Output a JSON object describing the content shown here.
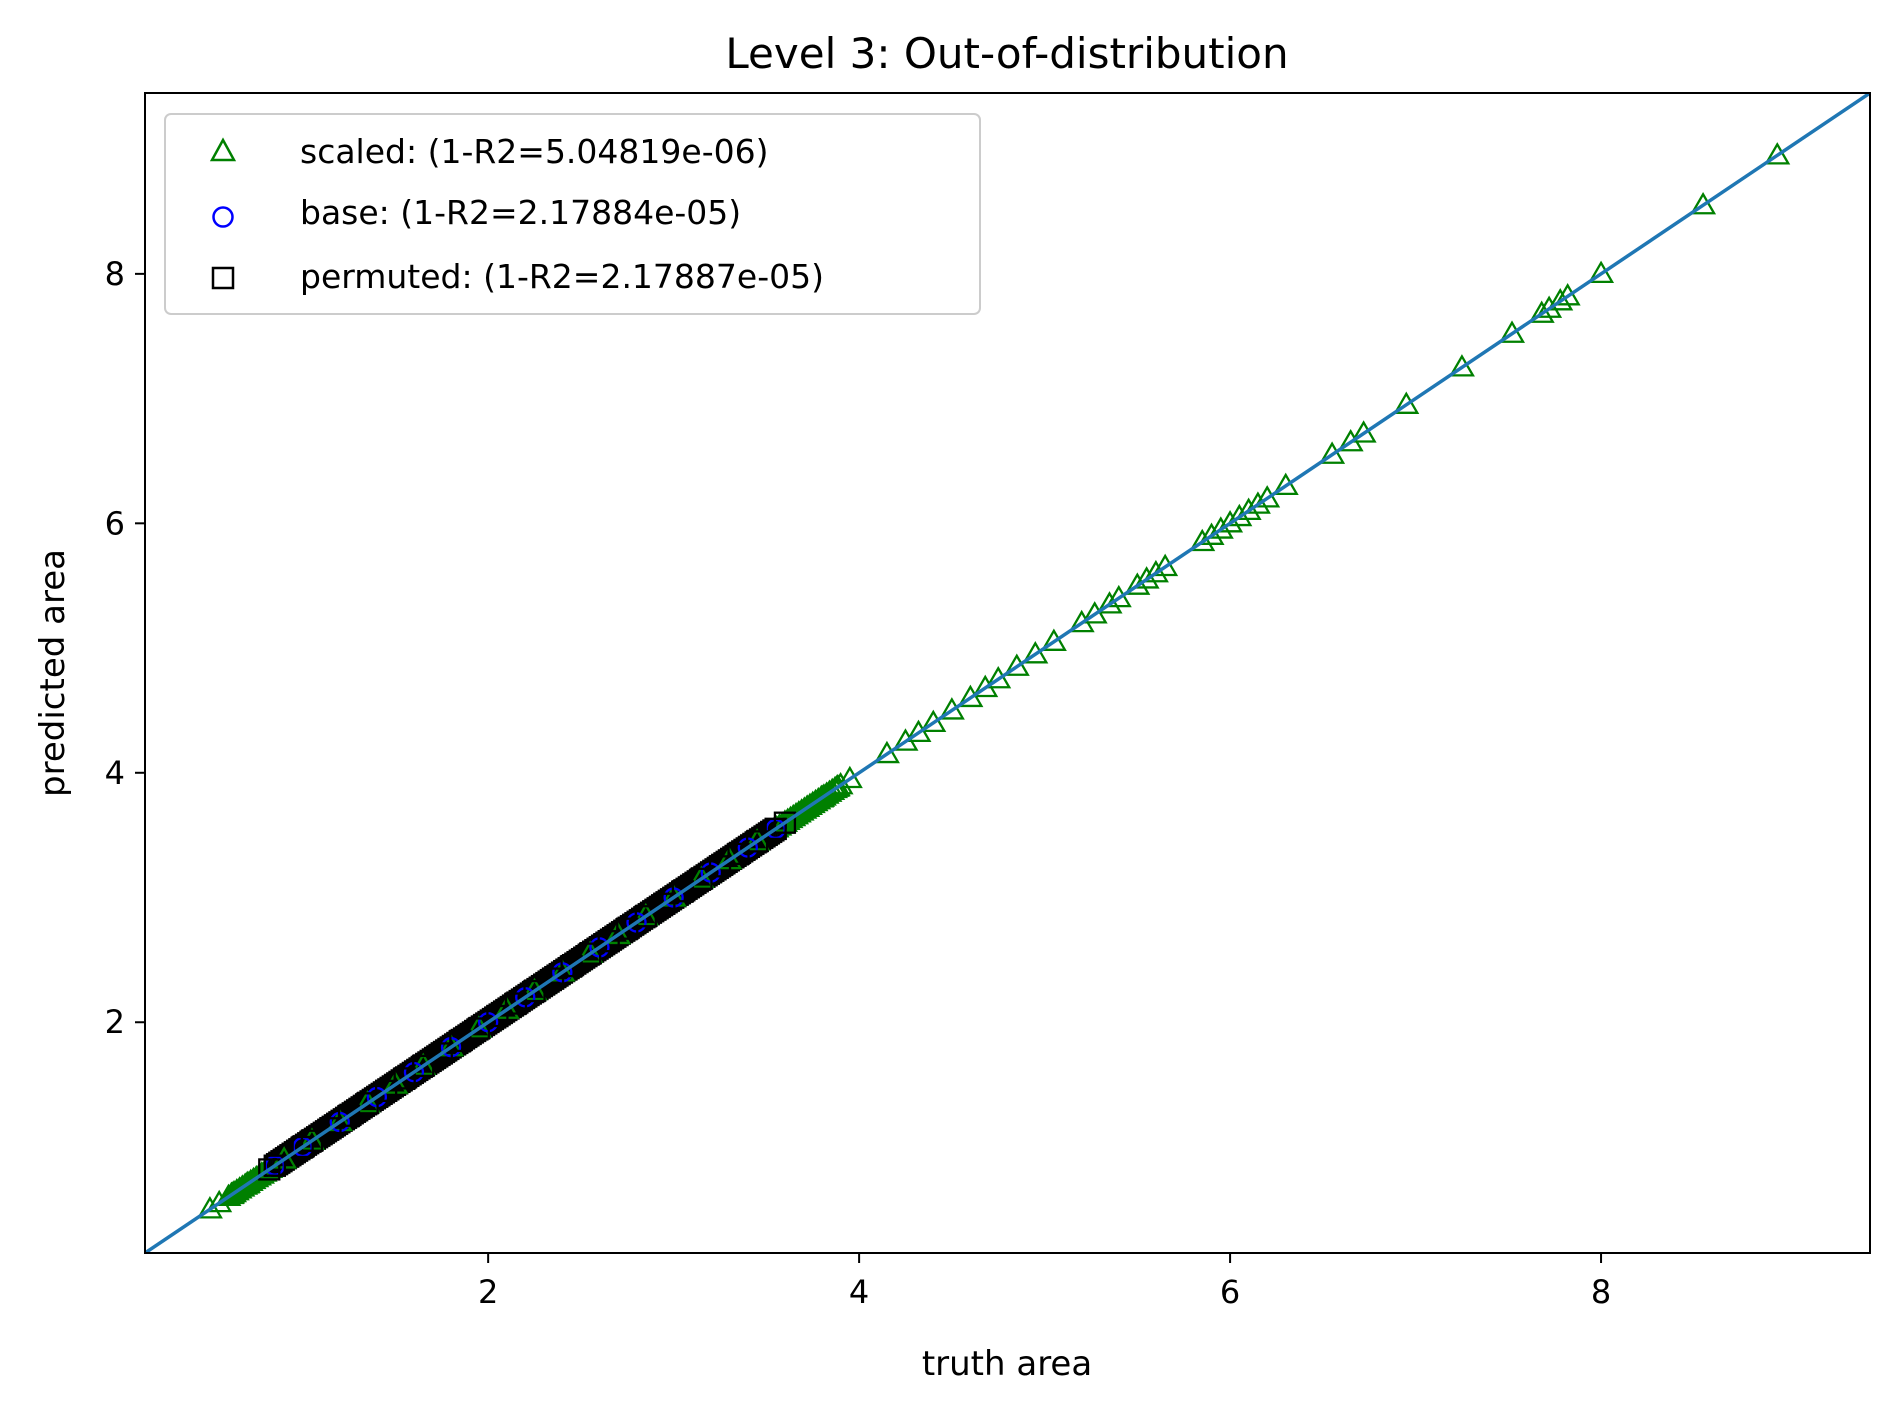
{
  "chart_data": {
    "type": "scatter",
    "title": "Level 3: Out-of-distribution",
    "xlabel": "truth area",
    "ylabel": "predicted area",
    "xlim": [
      0.15,
      9.45
    ],
    "ylim": [
      0.15,
      9.45
    ],
    "xticks": [
      2,
      4,
      6,
      8
    ],
    "yticks": [
      2,
      4,
      6,
      8
    ],
    "xtick_labels": [
      "2",
      "4",
      "6",
      "8"
    ],
    "ytick_labels": [
      "2",
      "4",
      "6",
      "8"
    ],
    "grid": false,
    "legend_position": "top-left",
    "reference_line": {
      "from": [
        0.15,
        0.15
      ],
      "to": [
        9.45,
        9.45
      ],
      "color": "#1f77b4"
    },
    "series": [
      {
        "name": "scaled: (1-R2=5.04819e-06)",
        "marker": "triangle",
        "color": "#008000",
        "x": [
          0.5,
          0.55,
          0.62,
          0.7,
          0.78,
          0.9,
          1.05,
          1.2,
          1.35,
          1.5,
          1.65,
          1.8,
          1.95,
          2.1,
          2.25,
          2.4,
          2.55,
          2.7,
          2.85,
          3.0,
          3.15,
          3.3,
          3.45,
          3.6,
          3.72,
          3.8,
          3.88,
          3.95,
          4.15,
          4.25,
          4.32,
          4.4,
          4.5,
          4.6,
          4.68,
          4.75,
          4.85,
          4.95,
          5.05,
          5.2,
          5.27,
          5.35,
          5.4,
          5.5,
          5.55,
          5.6,
          5.65,
          5.85,
          5.9,
          5.95,
          6.0,
          6.05,
          6.1,
          6.15,
          6.2,
          6.3,
          6.55,
          6.65,
          6.72,
          6.95,
          7.25,
          7.52,
          7.68,
          7.72,
          7.78,
          7.82,
          8.0,
          8.55,
          8.95
        ],
        "y": [
          0.5,
          0.55,
          0.62,
          0.7,
          0.78,
          0.9,
          1.05,
          1.2,
          1.35,
          1.5,
          1.65,
          1.8,
          1.95,
          2.1,
          2.25,
          2.4,
          2.55,
          2.7,
          2.85,
          3.0,
          3.15,
          3.3,
          3.45,
          3.6,
          3.72,
          3.8,
          3.88,
          3.95,
          4.15,
          4.25,
          4.32,
          4.4,
          4.5,
          4.6,
          4.68,
          4.75,
          4.85,
          4.95,
          5.05,
          5.2,
          5.27,
          5.35,
          5.4,
          5.5,
          5.55,
          5.6,
          5.65,
          5.85,
          5.9,
          5.95,
          6.0,
          6.05,
          6.1,
          6.15,
          6.2,
          6.3,
          6.55,
          6.65,
          6.72,
          6.95,
          7.25,
          7.52,
          7.68,
          7.72,
          7.78,
          7.82,
          8.0,
          8.55,
          8.95
        ]
      },
      {
        "name": "base: (1-R2=2.17884e-05)",
        "marker": "circle",
        "color": "#0000ff",
        "x": [
          0.85,
          1.0,
          1.2,
          1.4,
          1.6,
          1.8,
          2.0,
          2.2,
          2.4,
          2.6,
          2.8,
          3.0,
          3.2,
          3.4,
          3.55
        ],
        "y": [
          0.85,
          1.0,
          1.2,
          1.4,
          1.6,
          1.8,
          2.0,
          2.2,
          2.4,
          2.6,
          2.8,
          3.0,
          3.2,
          3.4,
          3.55
        ]
      },
      {
        "name": "permuted: (1-R2=2.17887e-05)",
        "marker": "square",
        "color": "#000000",
        "x": [
          0.82,
          0.85,
          1.0,
          1.05,
          1.15,
          1.25,
          1.35,
          1.45,
          1.55,
          1.65,
          1.75,
          1.85,
          1.95,
          2.05,
          2.15,
          2.25,
          2.35,
          2.45,
          2.55,
          2.65,
          2.75,
          2.85,
          2.95,
          3.05,
          3.15,
          3.25,
          3.35,
          3.45,
          3.55,
          3.6
        ],
        "y": [
          0.82,
          0.85,
          1.0,
          1.05,
          1.15,
          1.25,
          1.35,
          1.45,
          1.55,
          1.65,
          1.75,
          1.85,
          1.95,
          2.05,
          2.15,
          2.25,
          2.35,
          2.45,
          2.55,
          2.65,
          2.75,
          2.85,
          2.95,
          3.05,
          3.15,
          3.25,
          3.35,
          3.45,
          3.55,
          3.6
        ]
      }
    ]
  }
}
